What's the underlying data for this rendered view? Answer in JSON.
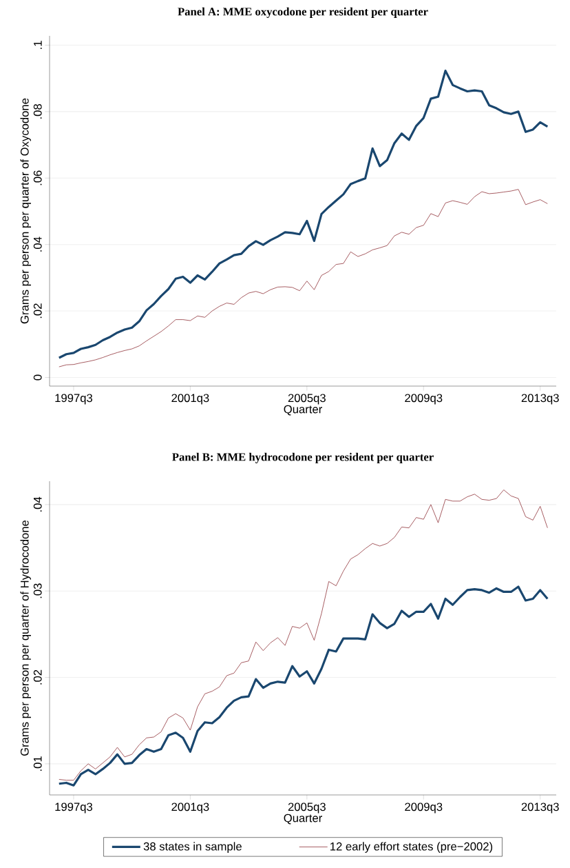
{
  "chart_data": [
    {
      "type": "line",
      "title": "Panel A: MME oxycodone per resident per quarter",
      "xlabel": "Quarter",
      "ylabel": "Grams per person per quarter of Oxycodone",
      "categories": [
        null,
        null,
        "1997q3",
        null,
        null,
        null,
        null,
        null,
        null,
        null,
        null,
        null,
        null,
        null,
        null,
        null,
        null,
        null,
        "2001q3",
        null,
        null,
        null,
        null,
        null,
        null,
        null,
        null,
        null,
        null,
        null,
        null,
        null,
        null,
        null,
        "2005q3",
        null,
        null,
        null,
        null,
        null,
        null,
        null,
        null,
        null,
        null,
        null,
        null,
        null,
        null,
        null,
        "2009q3",
        null,
        null,
        null,
        null,
        null,
        null,
        null,
        null,
        null,
        null,
        null,
        null,
        null,
        null,
        null,
        "2013q3",
        null
      ],
      "series": [
        {
          "color": "#1a476f",
          "values": [
            0.0059,
            0.007,
            0.0074,
            0.0086,
            0.0091,
            0.0098,
            0.0112,
            0.0122,
            0.0135,
            0.0144,
            0.015,
            0.0169,
            0.0202,
            0.0221,
            0.0245,
            0.0266,
            0.0297,
            0.0303,
            0.0285,
            0.0307,
            0.0295,
            0.0318,
            0.0343,
            0.0355,
            0.0368,
            0.0372,
            0.0395,
            0.041,
            0.0399,
            0.0413,
            0.0424,
            0.0437,
            0.0435,
            0.0431,
            0.0471,
            0.0411,
            0.0492,
            0.0513,
            0.0532,
            0.0551,
            0.0582,
            0.0591,
            0.0599,
            0.0689,
            0.0636,
            0.0654,
            0.0705,
            0.0734,
            0.0715,
            0.0757,
            0.0781,
            0.0839,
            0.0845,
            0.0923,
            0.088,
            0.087,
            0.0861,
            0.0864,
            0.0861,
            0.0819,
            0.081,
            0.0798,
            0.0793,
            0.08,
            0.0739,
            0.0746,
            0.0768,
            0.0755
          ]
        },
        {
          "color": "#90353b",
          "values": [
            0.0032,
            0.0038,
            0.0039,
            0.0044,
            0.0048,
            0.0053,
            0.006,
            0.0068,
            0.0075,
            0.0081,
            0.0086,
            0.0095,
            0.011,
            0.0124,
            0.0138,
            0.0155,
            0.0174,
            0.0174,
            0.0171,
            0.0185,
            0.0181,
            0.02,
            0.0214,
            0.0224,
            0.022,
            0.024,
            0.0254,
            0.0259,
            0.0252,
            0.0264,
            0.0272,
            0.0273,
            0.0271,
            0.0261,
            0.029,
            0.0264,
            0.0307,
            0.0319,
            0.034,
            0.0343,
            0.0378,
            0.0364,
            0.0372,
            0.0384,
            0.039,
            0.0397,
            0.0426,
            0.0437,
            0.0431,
            0.0451,
            0.0458,
            0.0493,
            0.0484,
            0.0525,
            0.0532,
            0.0527,
            0.0521,
            0.0544,
            0.0559,
            0.0553,
            0.0555,
            0.0558,
            0.0561,
            0.0566,
            0.052,
            0.0528,
            0.0535,
            0.0523
          ]
        }
      ],
      "ylim": [
        -0.0026,
        0.1028
      ],
      "yticks": [
        0,
        {
          "value": 0.02,
          "label": ".02"
        },
        {
          "value": 0.04,
          "label": ".04"
        },
        {
          "value": 0.06,
          "label": ".06"
        },
        {
          "value": 0.08,
          "label": ".08"
        },
        {
          "value": 0.1,
          "label": ".1"
        }
      ],
      "grid": "y"
    },
    {
      "type": "line",
      "title": "Panel B: MME hydrocodone per resident per quarter",
      "xlabel": "Quarter",
      "ylabel": "Grams per person per quarter of Hydrocodone",
      "categories": [
        null,
        null,
        "1997q3",
        null,
        null,
        null,
        null,
        null,
        null,
        null,
        null,
        null,
        null,
        null,
        null,
        null,
        null,
        null,
        "2001q3",
        null,
        null,
        null,
        null,
        null,
        null,
        null,
        null,
        null,
        null,
        null,
        null,
        null,
        null,
        null,
        "2005q3",
        null,
        null,
        null,
        null,
        null,
        null,
        null,
        null,
        null,
        null,
        null,
        null,
        null,
        null,
        null,
        "2009q3",
        null,
        null,
        null,
        null,
        null,
        null,
        null,
        null,
        null,
        null,
        null,
        null,
        null,
        null,
        null,
        "2013q3",
        null
      ],
      "series": [
        {
          "name": "38 states in sample",
          "color": "#1a476f",
          "values": [
            0.0077,
            0.0078,
            0.0075,
            0.0088,
            0.0093,
            0.0088,
            0.0094,
            0.0101,
            0.0111,
            0.01,
            0.0101,
            0.011,
            0.0117,
            0.0114,
            0.0117,
            0.0133,
            0.0136,
            0.013,
            0.0114,
            0.0138,
            0.0148,
            0.0147,
            0.0154,
            0.0165,
            0.0173,
            0.0177,
            0.0178,
            0.0198,
            0.0188,
            0.0193,
            0.0195,
            0.0194,
            0.0213,
            0.0201,
            0.0207,
            0.0193,
            0.021,
            0.0232,
            0.023,
            0.0245,
            0.0245,
            0.0245,
            0.0244,
            0.0273,
            0.0263,
            0.0257,
            0.0262,
            0.0277,
            0.027,
            0.0276,
            0.0276,
            0.0285,
            0.0268,
            0.0291,
            0.0284,
            0.0293,
            0.0301,
            0.0302,
            0.0301,
            0.0298,
            0.0303,
            0.0299,
            0.0299,
            0.0305,
            0.0289,
            0.0291,
            0.0301,
            0.0291
          ]
        },
        {
          "name": "12 early effort states (pre−2002)",
          "color": "#90353b",
          "values": [
            0.0082,
            0.0081,
            0.0081,
            0.0092,
            0.01,
            0.0094,
            0.0101,
            0.0108,
            0.0119,
            0.0108,
            0.0111,
            0.0122,
            0.013,
            0.0131,
            0.0137,
            0.0153,
            0.0158,
            0.0153,
            0.0139,
            0.0166,
            0.0181,
            0.0184,
            0.0189,
            0.0202,
            0.0205,
            0.0217,
            0.0219,
            0.0241,
            0.0231,
            0.024,
            0.0246,
            0.0237,
            0.0259,
            0.0257,
            0.0263,
            0.0243,
            0.0274,
            0.0311,
            0.0306,
            0.0323,
            0.0337,
            0.0342,
            0.0349,
            0.0355,
            0.0352,
            0.0355,
            0.0362,
            0.0374,
            0.0373,
            0.0385,
            0.0383,
            0.04,
            0.0379,
            0.0406,
            0.0404,
            0.0404,
            0.0409,
            0.0412,
            0.0406,
            0.0405,
            0.0407,
            0.0417,
            0.041,
            0.0407,
            0.0386,
            0.0382,
            0.0398,
            0.0373
          ]
        }
      ],
      "ylim": [
        0.0064,
        0.0427
      ],
      "yticks": [
        {
          "value": 0.01,
          "label": ".01"
        },
        {
          "value": 0.02,
          "label": ".02"
        },
        {
          "value": 0.03,
          "label": ".03"
        },
        {
          "value": 0.04,
          "label": ".04"
        }
      ],
      "grid": "y",
      "legend": "bottom"
    }
  ]
}
